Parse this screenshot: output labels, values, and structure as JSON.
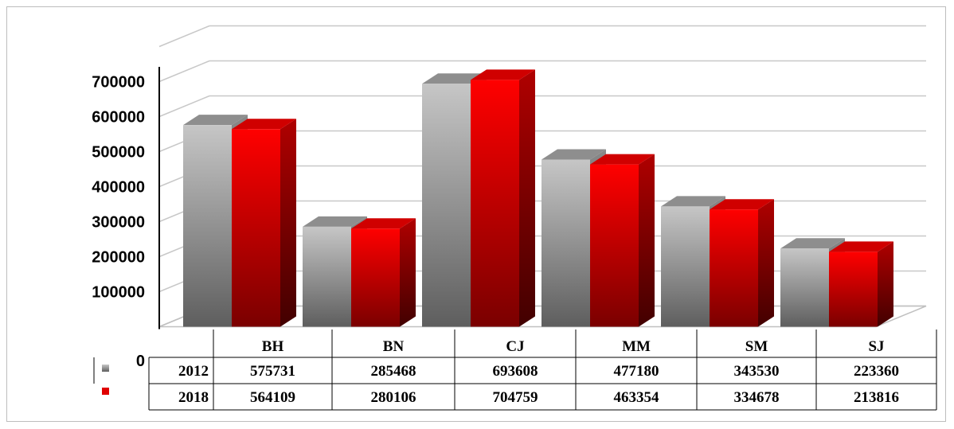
{
  "chart_data": {
    "type": "bar",
    "style": "3d-clustered-column",
    "categories": [
      "BH",
      "BN",
      "CJ",
      "MM",
      "SM",
      "SJ"
    ],
    "series": [
      {
        "name": "2012",
        "values": [
          575731,
          285468,
          693608,
          477180,
          343530,
          223360
        ],
        "color": "#a8a8a8"
      },
      {
        "name": "2018",
        "values": [
          564109,
          280106,
          704759,
          463354,
          334678,
          213816
        ],
        "color": "#ff0000"
      }
    ],
    "ylim": [
      0,
      800000
    ],
    "yticks": [
      "0",
      "100000",
      "200000",
      "300000",
      "400000",
      "500000",
      "600000",
      "700000"
    ],
    "grid": true,
    "legend": "data-table-left",
    "table": {
      "headers": [
        "BH",
        "BN",
        "CJ",
        "MM",
        "SM",
        "SJ"
      ],
      "rows": [
        {
          "label": "2012",
          "cells": [
            "575731",
            "285468",
            "693608",
            "477180",
            "343530",
            "223360"
          ]
        },
        {
          "label": "2018",
          "cells": [
            "564109",
            "280106",
            "704759",
            "463354",
            "334678",
            "213816"
          ]
        }
      ]
    }
  }
}
